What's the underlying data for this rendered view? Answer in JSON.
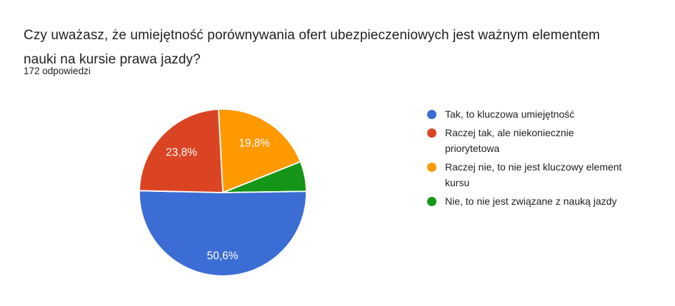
{
  "colors": {
    "background": "#ffffff",
    "title_text": "#212121",
    "body_text": "#202124",
    "pie_label_text": "#ffffff",
    "slice_stroke": "#ffffff"
  },
  "header": {
    "title_lines": [
      "Czy uważasz, że umiejętność porównywania ofert ubezpieczeniowych jest ważnym elementem",
      "nauki na kursie prawa jazdy?"
    ],
    "responses_count": "172 odpowiedzi"
  },
  "chart_data": {
    "type": "pie",
    "title": "Czy uważasz, że umiejętność porównywania ofert ubezpieczeniowych jest ważnym elementem nauki na kursie prawa jazdy?",
    "subtitle": "172 odpowiedzi",
    "unit": "%",
    "legend_position": "right",
    "start_angle_deg": -3,
    "direction": "clockwise",
    "slices": [
      {
        "label": "Raczej nie, to nie jest kluczowy element kursu",
        "value": 19.8,
        "display_label": "19,8%",
        "color": "#FF9900",
        "label_radius_frac": 0.7
      },
      {
        "label": "Nie, to nie jest związane z nauką jazdy",
        "value": 5.8,
        "display_label": "",
        "color": "#169618",
        "label_radius_frac": 0
      },
      {
        "label": "Tak, to kluczowa umiejętność",
        "value": 50.6,
        "display_label": "50,6%",
        "color": "#3B6DD4",
        "label_radius_frac": 0.76
      },
      {
        "label": "Raczej tak, ale niekoniecznie priorytetowa",
        "value": 23.8,
        "display_label": "23,8%",
        "color": "#DB4423",
        "label_radius_frac": 0.69
      }
    ],
    "legend": [
      {
        "color": "#3B6DD4",
        "lines": [
          "Tak, to kluczowa umiejętność"
        ]
      },
      {
        "color": "#DB4423",
        "lines": [
          "Raczej tak, ale niekoniecznie",
          "priorytetowa"
        ]
      },
      {
        "color": "#FF9900",
        "lines": [
          "Raczej nie, to nie jest kluczowy element",
          "kursu"
        ]
      },
      {
        "color": "#169618",
        "lines": [
          "Nie, to nie jest związane z nauką jazdy"
        ]
      }
    ]
  }
}
